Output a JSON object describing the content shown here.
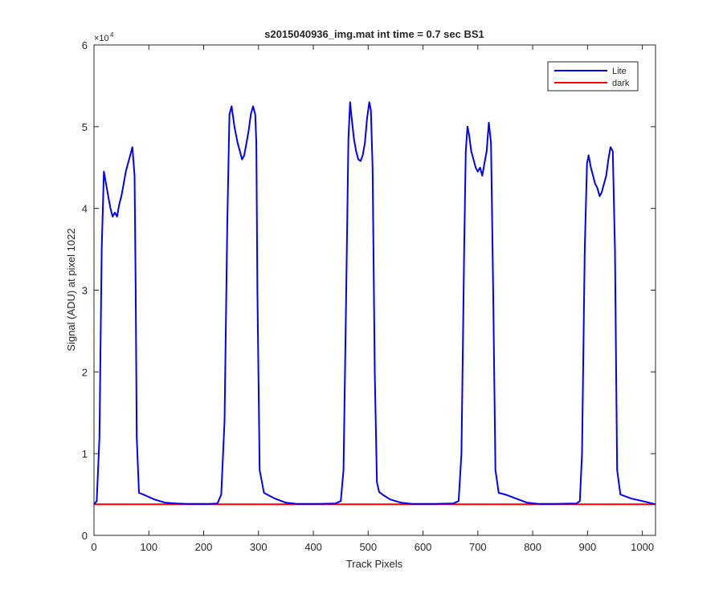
{
  "chart_data": {
    "type": "line",
    "title": "s2015040936_img.mat int time = 0.7 sec   BS1",
    "xlabel": "Track Pixels",
    "ylabel": "Signal (ADU) at pixel 1022",
    "exponent_label": "×10",
    "exponent_power": "4",
    "xlim": [
      0,
      1024
    ],
    "ylim": [
      0,
      60000
    ],
    "xticks": [
      0,
      100,
      200,
      300,
      400,
      500,
      600,
      700,
      800,
      900,
      1000
    ],
    "xtick_labels": [
      "0",
      "100",
      "200",
      "300",
      "400",
      "500",
      "600",
      "700",
      "800",
      "900",
      "1000"
    ],
    "yticks": [
      0,
      10000,
      20000,
      30000,
      40000,
      50000,
      60000
    ],
    "ytick_labels": [
      "0",
      "1",
      "2",
      "3",
      "4",
      "5",
      "6"
    ],
    "grid": false,
    "legend_position": "top-right",
    "series": [
      {
        "name": "Lite",
        "color": "#0000ff",
        "x": [
          0,
          5,
          10,
          14,
          18,
          22,
          26,
          30,
          34,
          38,
          42,
          46,
          50,
          54,
          58,
          62,
          66,
          70,
          74,
          76,
          78,
          82,
          90,
          110,
          130,
          150,
          170,
          190,
          210,
          225,
          232,
          238,
          243,
          247,
          251,
          256,
          262,
          266,
          270,
          274,
          278,
          282,
          286,
          290,
          294,
          296,
          298,
          302,
          310,
          330,
          350,
          370,
          390,
          410,
          440,
          450,
          455,
          460,
          464,
          467,
          470,
          474,
          478,
          482,
          486,
          490,
          494,
          498,
          502,
          505,
          508,
          512,
          516,
          520,
          526,
          540,
          560,
          580,
          600,
          620,
          655,
          665,
          670,
          675,
          678,
          681,
          684,
          688,
          692,
          696,
          700,
          704,
          708,
          712,
          716,
          720,
          724,
          728,
          732,
          738,
          750,
          770,
          790,
          810,
          840,
          880,
          886,
          890,
          895,
          899,
          902,
          906,
          910,
          914,
          918,
          922,
          926,
          930,
          934,
          938,
          942,
          946,
          950,
          954,
          960,
          980,
          1000,
          1024
        ],
        "y": [
          3800,
          4200,
          12000,
          35000,
          44500,
          43000,
          41500,
          40000,
          39000,
          39500,
          39000,
          40500,
          41500,
          43000,
          44500,
          45500,
          46500,
          47500,
          44000,
          30000,
          12000,
          5200,
          5000,
          4400,
          4000,
          3900,
          3850,
          3850,
          3850,
          3900,
          5000,
          14000,
          38000,
          51500,
          52500,
          50000,
          48000,
          47000,
          46000,
          46500,
          48000,
          49500,
          51500,
          52500,
          51500,
          48000,
          30000,
          8000,
          5200,
          4500,
          4000,
          3850,
          3850,
          3850,
          3900,
          4200,
          8000,
          30000,
          48500,
          53000,
          51000,
          48500,
          47000,
          46000,
          45800,
          46500,
          48000,
          51000,
          53000,
          52000,
          45000,
          20000,
          6500,
          5300,
          5000,
          4400,
          4000,
          3850,
          3850,
          3850,
          3900,
          4200,
          10000,
          35000,
          47000,
          50000,
          49000,
          47000,
          46000,
          45000,
          44500,
          45000,
          44000,
          45500,
          47000,
          50500,
          48000,
          30000,
          8000,
          5200,
          5000,
          4500,
          4000,
          3850,
          3850,
          3900,
          4200,
          10000,
          35000,
          45500,
          46500,
          45000,
          44000,
          43000,
          42500,
          41500,
          42000,
          43000,
          44000,
          46000,
          47500,
          47000,
          35000,
          8000,
          5000,
          4500,
          4200,
          3800
        ]
      },
      {
        "name": "dark",
        "color": "#ff0000",
        "x": [
          0,
          1024
        ],
        "y": [
          3800,
          3800
        ]
      }
    ]
  }
}
